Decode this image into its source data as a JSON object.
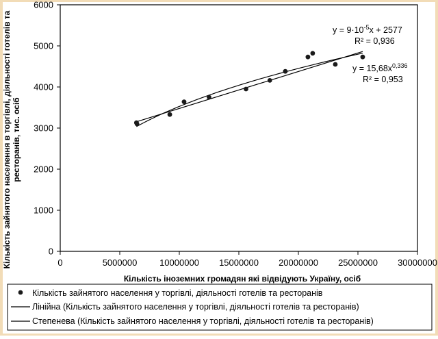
{
  "chart_data": {
    "type": "scatter",
    "title": "",
    "xlabel": "Кількість  іноземних громадян які відвідують  Україну,  осіб",
    "ylabel_line1": "Кількість зайнятого населення в торгівлі, діяльності готелів та",
    "ylabel_line2": "ресторанів, тис. осіб",
    "xlim": [
      0,
      30000000
    ],
    "ylim": [
      0,
      6000
    ],
    "x_ticks": [
      0,
      5000000,
      10000000,
      15000000,
      20000000,
      25000000,
      30000000
    ],
    "y_ticks": [
      0,
      1000,
      2000,
      3000,
      4000,
      5000,
      6000
    ],
    "grid": false,
    "legend_placement": "bottom",
    "series": [
      {
        "name": "Кількість зайнятого населення у торгівлі, діяльності готелів та ресторанів",
        "kind": "points",
        "x": [
          6400000,
          6450000,
          9200000,
          10400000,
          12500000,
          15600000,
          17600000,
          18900000,
          20800000,
          21200000,
          23100000,
          25400000
        ],
        "y": [
          3130,
          3100,
          3330,
          3640,
          3750,
          3950,
          4160,
          4380,
          4730,
          4820,
          4550,
          4730
        ]
      },
      {
        "name": "Лінійна (Кількість зайнятого населення у торгівлі, діяльності готелів та ресторанів)",
        "kind": "linear",
        "slope": 9e-05,
        "intercept": 2577,
        "x_range": [
          6400000,
          25400000
        ]
      },
      {
        "name": "Степенева (Кількість зайнятого населення у торгівлі, діяльності готелів та ресторанів)",
        "kind": "power",
        "coef": 15.68,
        "exponent": 0.336,
        "x_range": [
          6400000,
          25400000
        ]
      }
    ],
    "annotations": {
      "linear_eq": "y = 9·10",
      "linear_eq_exp": "-5",
      "linear_eq_tail": "x + 2577",
      "linear_r2": "R² = 0,936",
      "power_eq": "y = 15,68x",
      "power_eq_exp": "0,336",
      "power_r2": "R² = 0,953"
    },
    "colors": {
      "background": "#ffffff",
      "frame": "#f2dcb7",
      "points": "#1a1a1a",
      "lines": "#000000"
    }
  }
}
